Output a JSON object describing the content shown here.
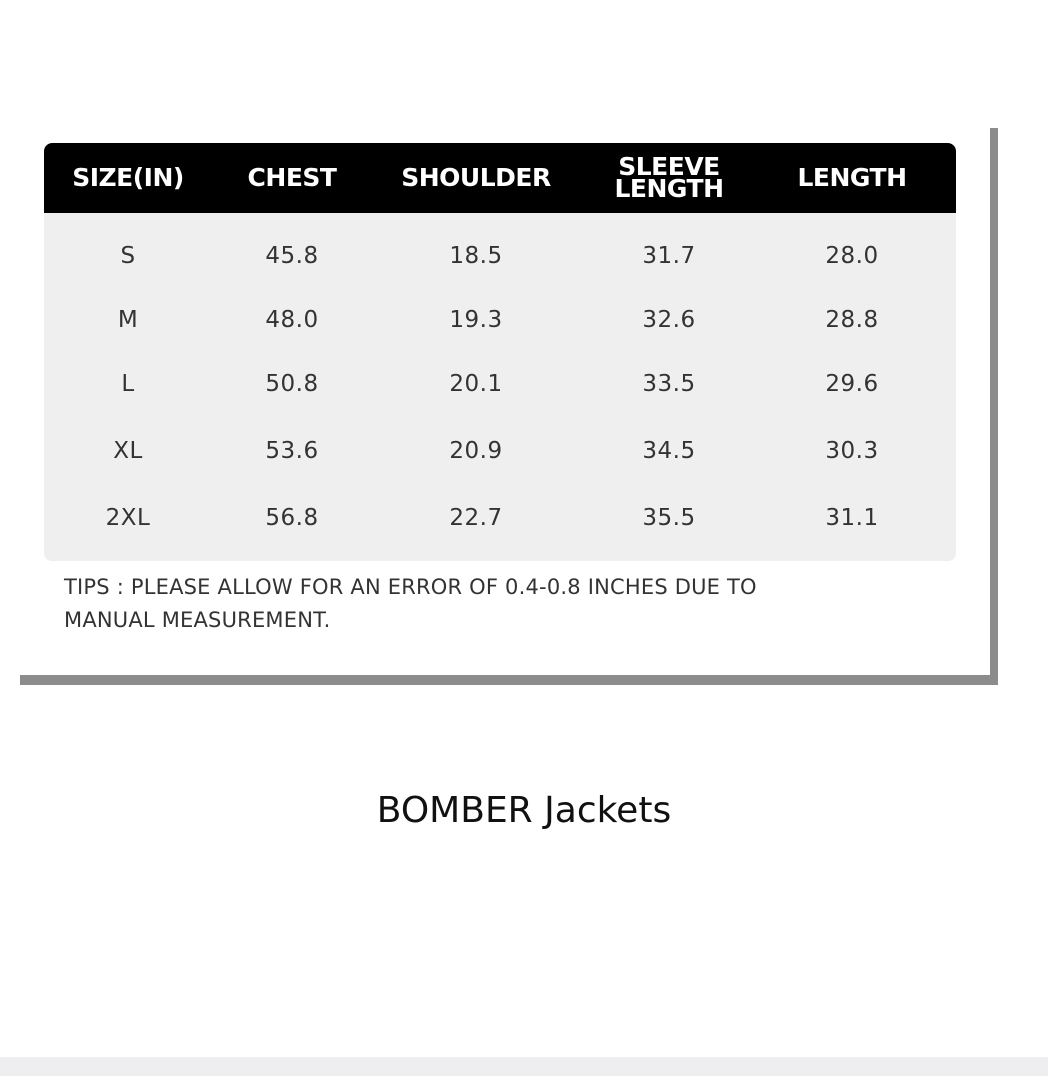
{
  "size_chart": {
    "headers": [
      "SIZE(IN)",
      "CHEST",
      "SHOULDER",
      "SLEEVE LENGTH",
      "LENGTH"
    ],
    "header_sleeve_lines": [
      "SLEEVE",
      "LENGTH"
    ],
    "rows": [
      [
        "S",
        "45.8",
        "18.5",
        "31.7",
        "28.0"
      ],
      [
        "M",
        "48.0",
        "19.3",
        "32.6",
        "28.8"
      ],
      [
        "L",
        "50.8",
        "20.1",
        "33.5",
        "29.6"
      ],
      [
        "XL",
        "53.6",
        "20.9",
        "34.5",
        "30.3"
      ],
      [
        "2XL",
        "56.8",
        "22.7",
        "35.5",
        "31.1"
      ]
    ],
    "tips_line1": "TIPS : PLEASE ALLOW FOR AN ERROR OF 0.4-0.8 INCHES DUE TO",
    "tips_line2": "MANUAL MEASUREMENT."
  },
  "caption": "BOMBER Jackets",
  "colors": {
    "header_bg": "#000000",
    "body_bg": "#efefef",
    "shadow": "#8c8c8c"
  }
}
